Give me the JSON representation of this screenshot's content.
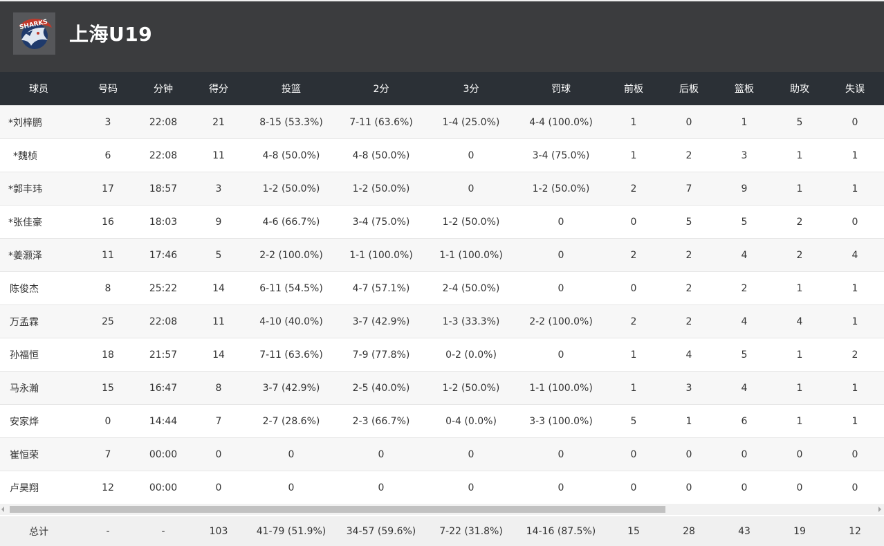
{
  "team": {
    "name": "上海U19",
    "logo_icon": "sharks-logo-icon"
  },
  "columns": [
    "球员",
    "号码",
    "分钟",
    "得分",
    "投篮",
    "2分",
    "3分",
    "罚球",
    "前板",
    "后板",
    "篮板",
    "助攻",
    "失误"
  ],
  "players": [
    {
      "name": "*刘梓鹏",
      "number": "3",
      "minutes": "22:08",
      "points": "21",
      "fg": "8-15 (53.3%)",
      "two": "7-11 (63.6%)",
      "three": "1-4 (25.0%)",
      "ft": "4-4 (100.0%)",
      "oreb": "1",
      "dreb": "0",
      "reb": "1",
      "ast": "5",
      "tov": "0"
    },
    {
      "name": "*魏桢",
      "number": "6",
      "minutes": "22:08",
      "points": "11",
      "fg": "4-8 (50.0%)",
      "two": "4-8 (50.0%)",
      "three": "0",
      "ft": "3-4 (75.0%)",
      "oreb": "1",
      "dreb": "2",
      "reb": "3",
      "ast": "1",
      "tov": "1"
    },
    {
      "name": "*郭丰玮",
      "number": "17",
      "minutes": "18:57",
      "points": "3",
      "fg": "1-2 (50.0%)",
      "two": "1-2 (50.0%)",
      "three": "0",
      "ft": "1-2 (50.0%)",
      "oreb": "2",
      "dreb": "7",
      "reb": "9",
      "ast": "1",
      "tov": "1"
    },
    {
      "name": "*张佳豪",
      "number": "16",
      "minutes": "18:03",
      "points": "9",
      "fg": "4-6 (66.7%)",
      "two": "3-4 (75.0%)",
      "three": "1-2 (50.0%)",
      "ft": "0",
      "oreb": "0",
      "dreb": "5",
      "reb": "5",
      "ast": "2",
      "tov": "0"
    },
    {
      "name": "*姜灏泽",
      "number": "11",
      "minutes": "17:46",
      "points": "5",
      "fg": "2-2 (100.0%)",
      "two": "1-1 (100.0%)",
      "three": "1-1 (100.0%)",
      "ft": "0",
      "oreb": "2",
      "dreb": "2",
      "reb": "4",
      "ast": "2",
      "tov": "4"
    },
    {
      "name": "陈俊杰",
      "number": "8",
      "minutes": "25:22",
      "points": "14",
      "fg": "6-11 (54.5%)",
      "two": "4-7 (57.1%)",
      "three": "2-4 (50.0%)",
      "ft": "0",
      "oreb": "0",
      "dreb": "2",
      "reb": "2",
      "ast": "1",
      "tov": "1"
    },
    {
      "name": "万孟霖",
      "number": "25",
      "minutes": "22:08",
      "points": "11",
      "fg": "4-10 (40.0%)",
      "two": "3-7 (42.9%)",
      "three": "1-3 (33.3%)",
      "ft": "2-2 (100.0%)",
      "oreb": "2",
      "dreb": "2",
      "reb": "4",
      "ast": "4",
      "tov": "1"
    },
    {
      "name": "孙福恒",
      "number": "18",
      "minutes": "21:57",
      "points": "14",
      "fg": "7-11 (63.6%)",
      "two": "7-9 (77.8%)",
      "three": "0-2 (0.0%)",
      "ft": "0",
      "oreb": "1",
      "dreb": "4",
      "reb": "5",
      "ast": "1",
      "tov": "2"
    },
    {
      "name": "马永瀚",
      "number": "15",
      "minutes": "16:47",
      "points": "8",
      "fg": "3-7 (42.9%)",
      "two": "2-5 (40.0%)",
      "three": "1-2 (50.0%)",
      "ft": "1-1 (100.0%)",
      "oreb": "1",
      "dreb": "3",
      "reb": "4",
      "ast": "1",
      "tov": "1"
    },
    {
      "name": "安家烨",
      "number": "0",
      "minutes": "14:44",
      "points": "7",
      "fg": "2-7 (28.6%)",
      "two": "2-3 (66.7%)",
      "three": "0-4 (0.0%)",
      "ft": "3-3 (100.0%)",
      "oreb": "5",
      "dreb": "1",
      "reb": "6",
      "ast": "1",
      "tov": "1"
    },
    {
      "name": "崔恒荣",
      "number": "7",
      "minutes": "00:00",
      "points": "0",
      "fg": "0",
      "two": "0",
      "three": "0",
      "ft": "0",
      "oreb": "0",
      "dreb": "0",
      "reb": "0",
      "ast": "0",
      "tov": "0"
    },
    {
      "name": "卢昊翔",
      "number": "12",
      "minutes": "00:00",
      "points": "0",
      "fg": "0",
      "two": "0",
      "three": "0",
      "ft": "0",
      "oreb": "0",
      "dreb": "0",
      "reb": "0",
      "ast": "0",
      "tov": "0"
    }
  ],
  "totals": {
    "name": "总计",
    "number": "-",
    "minutes": "-",
    "points": "103",
    "fg": "41-79 (51.9%)",
    "two": "34-57 (59.6%)",
    "three": "7-22 (31.8%)",
    "ft": "14-16 (87.5%)",
    "oreb": "15",
    "dreb": "28",
    "reb": "43",
    "ast": "19",
    "tov": "12"
  },
  "colors": {
    "header_bg": "#3b3c3e",
    "table_head_bg": "#2b3036",
    "row_alt_bg": "#f7f7f7",
    "total_bg": "#f0f0f0"
  }
}
